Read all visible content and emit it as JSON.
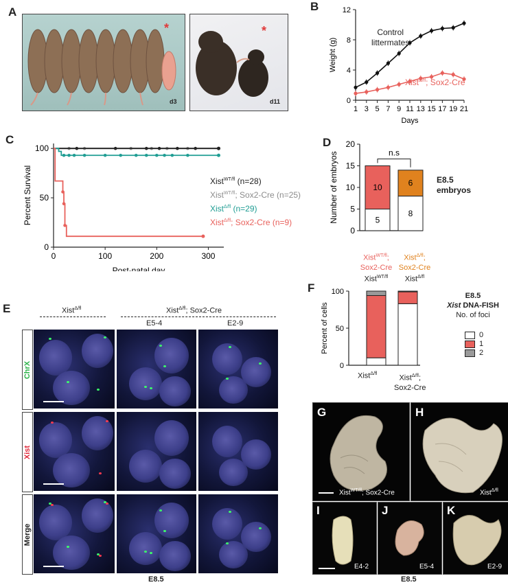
{
  "panel_letters": {
    "A": "A",
    "B": "B",
    "C": "C",
    "D": "D",
    "E": "E",
    "F": "F",
    "G": "G",
    "H": "H",
    "I": "I",
    "J": "J",
    "K": "K"
  },
  "panelA": {
    "photo1_label": "d3",
    "photo2_label": "d11",
    "marker": "*"
  },
  "panelB": {
    "label_control": "Control\nlittermates",
    "label_mutant": "Xist",
    "label_mutant_sup": "Δ/fl",
    "label_mutant_rest": "; Sox2-Cre"
  },
  "panelC_legend": [
    {
      "pre": "Xist",
      "sup": "WT/fl",
      "post": " (n=28)",
      "color": "#222222"
    },
    {
      "pre": "Xist",
      "sup": "WT/fl",
      "post": "; Sox2-Cre (n=25)",
      "color": "#8c8c8c"
    },
    {
      "pre": "Xist",
      "sup": "Δ/fl",
      "post": " (n=29)",
      "color": "#1f9d93"
    },
    {
      "pre": "Xist",
      "sup": "Δ/fl",
      "post": "; Sox2-Cre (n=9)",
      "color": "#e8615c"
    }
  ],
  "panelD": {
    "ns": "n.s",
    "side_title": "E8.5\nembryos",
    "cat1_line1_pre": "Xist",
    "cat1_line1_sup": "WT/fl",
    "cat1_line1_post": ";",
    "cat1_line2": "Sox2-Cre",
    "cat1_line3_pre": "Xist",
    "cat1_line3_sup": "WT/fl",
    "cat2_line1_pre": "Xist",
    "cat2_line1_sup": "Δ/fl",
    "cat2_line1_post": ";",
    "cat2_line2": "Sox2-Cre",
    "cat2_line3_pre": "Xist",
    "cat2_line3_sup": "Δ/fl"
  },
  "panelE": {
    "header1": "Xist",
    "header1_sup": "Δ/fl",
    "header2": "Xist",
    "header2_sup": "Δ/fl",
    "header2_rest": "; Sox2-Cre",
    "sub1": "E5-4",
    "sub2": "E2-9",
    "row1": "ChrX",
    "row2": "Xist",
    "row3": "Merge",
    "footer": "E8.5"
  },
  "panelF": {
    "title_line1": "E8.5",
    "title_line2_italic": "Xist",
    "title_line2_rest": " DNA-FISH",
    "title_line3": "No. of foci",
    "legend": [
      {
        "label": "0",
        "color": "#ffffff"
      },
      {
        "label": "1",
        "color": "#e8615c"
      },
      {
        "label": "2",
        "color": "#9a9a9a"
      }
    ],
    "cat1_pre": "Xist",
    "cat1_sup": "Δ/fl",
    "cat2_pre": "Xist",
    "cat2_sup": "Δ/fl",
    "cat2_post": ";",
    "cat2_line2": "Sox2-Cre"
  },
  "panelGK": {
    "G_label_pre": "Xist",
    "G_label_sup": "WT/fl",
    "G_label_post": "; Sox2-Cre",
    "H_label_pre": "Xist",
    "H_label_sup": "Δ/fl",
    "I_label": "E4-2",
    "J_label": "E5-4",
    "K_label": "E2-9",
    "footer": "E8.5"
  },
  "chart_data": [
    {
      "type": "line",
      "panel": "B",
      "xlabel": "Days",
      "ylabel": "Weight (g)",
      "xlim": [
        1,
        21
      ],
      "ylim": [
        0,
        12
      ],
      "xticks": [
        1,
        3,
        5,
        7,
        9,
        11,
        13,
        15,
        17,
        19,
        21
      ],
      "yticks": [
        0,
        4,
        8,
        12
      ],
      "series": [
        {
          "name": "Control littermates",
          "color": "#111111",
          "x": [
            1,
            3,
            5,
            7,
            9,
            11,
            13,
            15,
            17,
            19,
            21
          ],
          "y": [
            1.7,
            2.4,
            3.6,
            4.9,
            6.2,
            7.6,
            8.5,
            9.2,
            9.5,
            9.6,
            10.2
          ]
        },
        {
          "name": "XistΔ/fl; Sox2-Cre",
          "color": "#e8615c",
          "x": [
            1,
            3,
            5,
            7,
            9,
            11,
            13,
            15,
            17,
            19,
            21
          ],
          "y": [
            0.9,
            1.1,
            1.4,
            1.7,
            2.1,
            2.5,
            2.9,
            3.1,
            3.6,
            3.4,
            2.8
          ]
        }
      ]
    },
    {
      "type": "line",
      "panel": "C",
      "xlabel": "Post-natal day",
      "ylabel": "Percent Survival",
      "xlim": [
        0,
        330
      ],
      "ylim": [
        0,
        105
      ],
      "xticks": [
        0,
        100,
        200,
        300
      ],
      "yticks": [
        0,
        50,
        100
      ],
      "series": [
        {
          "name": "XistWT/fl (n=28)",
          "color": "#222222",
          "steps": [
            [
              0,
              100
            ],
            [
              320,
              100
            ]
          ]
        },
        {
          "name": "XistWT/fl; Sox2-Cre (n=25)",
          "color": "#8c8c8c",
          "steps": [
            [
              0,
              100
            ],
            [
              320,
              100
            ]
          ]
        },
        {
          "name": "XistΔ/fl (n=29)",
          "color": "#1f9d93",
          "steps": [
            [
              0,
              100
            ],
            [
              10,
              100
            ],
            [
              10,
              97
            ],
            [
              15,
              97
            ],
            [
              15,
              93
            ],
            [
              320,
              93
            ]
          ]
        },
        {
          "name": "XistΔ/fl; Sox2-Cre (n=9)",
          "color": "#e8615c",
          "steps": [
            [
              0,
              100
            ],
            [
              3,
              100
            ],
            [
              3,
              67
            ],
            [
              18,
              67
            ],
            [
              18,
              56
            ],
            [
              20,
              56
            ],
            [
              20,
              44
            ],
            [
              22,
              44
            ],
            [
              22,
              22
            ],
            [
              25,
              22
            ],
            [
              25,
              11
            ],
            [
              290,
              11
            ]
          ]
        }
      ]
    },
    {
      "type": "bar",
      "panel": "D",
      "ylabel": "Number of embryos",
      "ylim": [
        0,
        20
      ],
      "yticks": [
        0,
        5,
        10,
        15,
        20
      ],
      "categories": [
        "XistWT/fl; Sox2-Cre XistWT/fl",
        "XistΔ/fl; Sox2-Cre XistΔ/fl"
      ],
      "stacks": [
        [
          {
            "value": 5,
            "color": "#ffffff"
          },
          {
            "value": 10,
            "color": "#e8615c"
          }
        ],
        [
          {
            "value": 8,
            "color": "#ffffff"
          },
          {
            "value": 6,
            "color": "#e0821e"
          }
        ]
      ]
    },
    {
      "type": "bar",
      "panel": "F",
      "ylabel": "Percent of cells",
      "ylim": [
        0,
        100
      ],
      "yticks": [
        0,
        50,
        100
      ],
      "categories": [
        "XistΔ/fl",
        "XistΔ/fl; Sox2-Cre"
      ],
      "series": [
        {
          "name": "0",
          "color": "#ffffff",
          "values": [
            10,
            83
          ]
        },
        {
          "name": "1",
          "color": "#e8615c",
          "values": [
            84,
            16
          ]
        },
        {
          "name": "2",
          "color": "#9a9a9a",
          "values": [
            6,
            1
          ]
        }
      ]
    }
  ]
}
